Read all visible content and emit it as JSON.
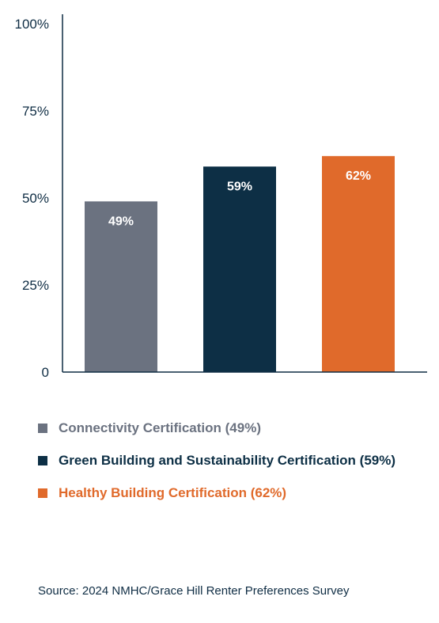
{
  "chart_data": {
    "type": "bar",
    "categories": [
      "Connectivity Certification (49%)",
      "Green Building and Sustainability Certification (59%)",
      "Healthy Building Certification (62%)"
    ],
    "values": [
      49,
      59,
      62
    ],
    "value_labels": [
      "49%",
      "59%",
      "62%"
    ],
    "colors": [
      "#6b7280",
      "#0d2f45",
      "#e06a2b"
    ],
    "legend_text_colors": [
      "#6b7280",
      "#0d2f45",
      "#e06a2b"
    ],
    "ylim": [
      0,
      100
    ],
    "yticks": [
      0,
      25,
      50,
      75,
      100
    ],
    "ytick_labels": [
      "0",
      "25%",
      "50%",
      "75%",
      "100%"
    ],
    "grid": false,
    "legend_position": "bottom"
  },
  "source": "Source: 2024 NMHC/Grace Hill Renter Preferences Survey"
}
